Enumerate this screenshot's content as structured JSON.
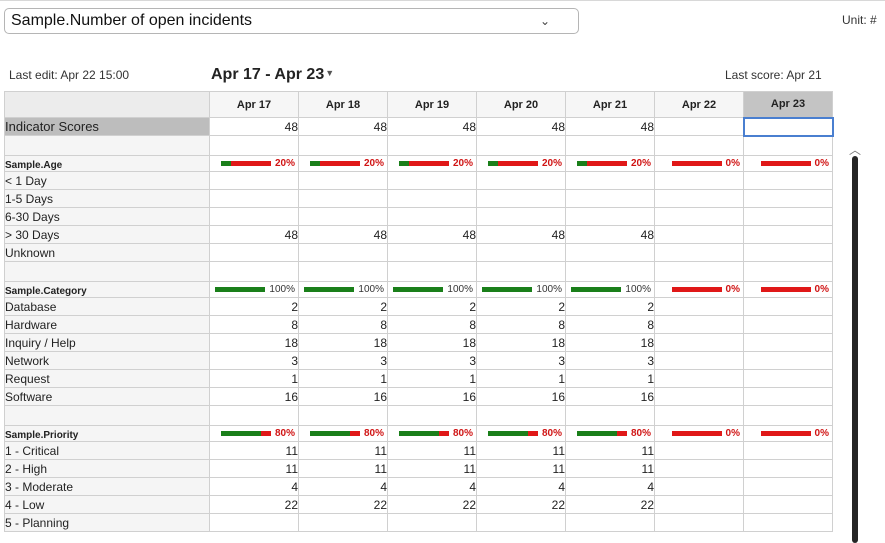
{
  "header": {
    "indicator_select": "Sample.Number of open incidents",
    "unit_label": "Unit: #",
    "last_edit": "Last edit: Apr 22 15:00",
    "date_range": "Apr 17 - Apr 23",
    "last_score": "Last score: Apr 21"
  },
  "icons": {
    "select_chevron": "⌄",
    "range_caret": "▼",
    "scroll_up": "︿"
  },
  "colors": {
    "gauge_green": "#1a7f1a",
    "gauge_red": "#e01818",
    "selection": "#4a7fd0"
  },
  "columns": [
    "Apr 17",
    "Apr 18",
    "Apr 19",
    "Apr 20",
    "Apr 21",
    "Apr 22",
    "Apr 23"
  ],
  "active_column": "Apr 23",
  "score_row": {
    "label": "Indicator Scores",
    "values": [
      "48",
      "48",
      "48",
      "48",
      "48",
      "",
      ""
    ]
  },
  "groups": [
    {
      "label": "Sample.Age",
      "gauges": [
        {
          "pct": "20%",
          "green": 0.2
        },
        {
          "pct": "20%",
          "green": 0.2
        },
        {
          "pct": "20%",
          "green": 0.2
        },
        {
          "pct": "20%",
          "green": 0.2
        },
        {
          "pct": "20%",
          "green": 0.2
        },
        {
          "pct": "0%",
          "green": 0
        },
        {
          "pct": "0%",
          "green": 0
        }
      ],
      "rows": [
        {
          "label": "< 1 Day",
          "values": [
            "",
            "",
            "",
            "",
            "",
            "",
            ""
          ]
        },
        {
          "label": "1-5 Days",
          "values": [
            "",
            "",
            "",
            "",
            "",
            "",
            ""
          ]
        },
        {
          "label": "6-30 Days",
          "values": [
            "",
            "",
            "",
            "",
            "",
            "",
            ""
          ]
        },
        {
          "label": "> 30 Days",
          "values": [
            "48",
            "48",
            "48",
            "48",
            "48",
            "",
            ""
          ]
        },
        {
          "label": "Unknown",
          "values": [
            "",
            "",
            "",
            "",
            "",
            "",
            ""
          ]
        }
      ]
    },
    {
      "label": "Sample.Category",
      "gauges": [
        {
          "pct": "100%",
          "green": 1
        },
        {
          "pct": "100%",
          "green": 1
        },
        {
          "pct": "100%",
          "green": 1
        },
        {
          "pct": "100%",
          "green": 1
        },
        {
          "pct": "100%",
          "green": 1
        },
        {
          "pct": "0%",
          "green": 0
        },
        {
          "pct": "0%",
          "green": 0
        }
      ],
      "rows": [
        {
          "label": "Database",
          "values": [
            "2",
            "2",
            "2",
            "2",
            "2",
            "",
            ""
          ]
        },
        {
          "label": "Hardware",
          "values": [
            "8",
            "8",
            "8",
            "8",
            "8",
            "",
            ""
          ]
        },
        {
          "label": "Inquiry / Help",
          "values": [
            "18",
            "18",
            "18",
            "18",
            "18",
            "",
            ""
          ]
        },
        {
          "label": "Network",
          "values": [
            "3",
            "3",
            "3",
            "3",
            "3",
            "",
            ""
          ]
        },
        {
          "label": "Request",
          "values": [
            "1",
            "1",
            "1",
            "1",
            "1",
            "",
            ""
          ]
        },
        {
          "label": "Software",
          "values": [
            "16",
            "16",
            "16",
            "16",
            "16",
            "",
            ""
          ]
        }
      ]
    },
    {
      "label": "Sample.Priority",
      "gauges": [
        {
          "pct": "80%",
          "green": 0.8
        },
        {
          "pct": "80%",
          "green": 0.8
        },
        {
          "pct": "80%",
          "green": 0.8
        },
        {
          "pct": "80%",
          "green": 0.8
        },
        {
          "pct": "80%",
          "green": 0.8
        },
        {
          "pct": "0%",
          "green": 0
        },
        {
          "pct": "0%",
          "green": 0
        }
      ],
      "rows": [
        {
          "label": "1 - Critical",
          "values": [
            "11",
            "11",
            "11",
            "11",
            "11",
            "",
            ""
          ]
        },
        {
          "label": "2 - High",
          "values": [
            "11",
            "11",
            "11",
            "11",
            "11",
            "",
            ""
          ]
        },
        {
          "label": "3 - Moderate",
          "values": [
            "4",
            "4",
            "4",
            "4",
            "4",
            "",
            ""
          ]
        },
        {
          "label": "4 - Low",
          "values": [
            "22",
            "22",
            "22",
            "22",
            "22",
            "",
            ""
          ]
        },
        {
          "label": "5 - Planning",
          "values": [
            "",
            "",
            "",
            "",
            "",
            "",
            ""
          ]
        }
      ]
    }
  ]
}
